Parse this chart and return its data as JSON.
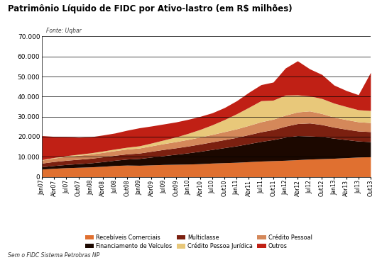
{
  "title": "Patrimônio Líquido de FIDC por Ativo-lastro (em R$ milhões)",
  "fonte": "Fonte: Uqbar",
  "footnote": "Sem o FIDC Sistema Petrobras NP",
  "ylim": [
    0,
    70000
  ],
  "yticks": [
    0,
    10000,
    20000,
    30000,
    40000,
    50000,
    60000,
    70000
  ],
  "series_names": [
    "Recebíveis Comerciais",
    "Financiamento de Veículos",
    "Multiclasse",
    "Crédito Pessoal",
    "Crédito Pessoa Jurídica",
    "Outros"
  ],
  "series_colors": [
    "#E07030",
    "#1C0800",
    "#7B2010",
    "#D4885A",
    "#E8C87A",
    "#C02015"
  ],
  "legend_order": [
    0,
    1,
    5,
    2,
    3,
    4
  ],
  "legend_names": [
    "Recebíveis Comerciais",
    "Financiamento de Veículos",
    "Multiclasse",
    "Crédito Pessoa Jurídica",
    "Crédito Pessoal",
    "Outros"
  ],
  "legend_colors": [
    "#E07030",
    "#1C0800",
    "#7B2010",
    "#E8C87A",
    "#D4885A",
    "#C02015"
  ],
  "x_labels": [
    "Jan07",
    "Abr07",
    "Jul07",
    "Out07",
    "Jan08",
    "Abr08",
    "Jul08",
    "Out08",
    "Jan09",
    "Abr09",
    "Jul09",
    "Out09",
    "Jan10",
    "Abr10",
    "Jul10",
    "Out10",
    "Jan11",
    "Abr11",
    "Jul11",
    "Out11",
    "Jan12",
    "Abr12",
    "Jul12",
    "Out12",
    "Jan13",
    "Abr13",
    "Jul13",
    "Out13"
  ],
  "data": {
    "Recebíveis Comerciais": [
      3800,
      4200,
      4500,
      4700,
      4900,
      5200,
      5600,
      5800,
      5700,
      5900,
      6100,
      6200,
      6300,
      6500,
      6800,
      7000,
      7200,
      7500,
      7800,
      8000,
      8200,
      8500,
      8800,
      9000,
      9200,
      9500,
      9800,
      10000
    ],
    "Financiamento de Veículos": [
      1200,
      1400,
      1600,
      1800,
      2000,
      2300,
      2600,
      3000,
      3400,
      3900,
      4400,
      5000,
      5600,
      6200,
      6800,
      7500,
      8200,
      9000,
      9800,
      10500,
      11500,
      12000,
      11500,
      11000,
      10000,
      9000,
      8000,
      7500
    ],
    "Multiclasse": [
      1800,
      2000,
      2100,
      2200,
      2300,
      2400,
      2500,
      2600,
      2700,
      2900,
      3100,
      3200,
      3400,
      3600,
      3800,
      4000,
      4200,
      4500,
      4800,
      5000,
      5500,
      6000,
      6500,
      6000,
      5500,
      5200,
      5000,
      5000
    ],
    "Crédito Pessoal": [
      1500,
      1700,
      1900,
      2000,
      2100,
      2200,
      2300,
      2400,
      2500,
      2700,
      2900,
      3100,
      3300,
      3500,
      3700,
      4000,
      4300,
      4600,
      5000,
      5200,
      5500,
      5800,
      6000,
      5500,
      5000,
      4800,
      4600,
      4500
    ],
    "Crédito Pessoa Jurídica": [
      200,
      300,
      400,
      500,
      600,
      700,
      800,
      900,
      1100,
      1400,
      1800,
      2300,
      3000,
      3800,
      4800,
      6000,
      7500,
      9000,
      10500,
      9500,
      10000,
      8500,
      7500,
      7500,
      7000,
      6500,
      6000,
      6000
    ],
    "Outros": [
      12000,
      10500,
      9500,
      8500,
      8000,
      8000,
      8000,
      8500,
      9000,
      8500,
      8000,
      7500,
      7000,
      6500,
      6000,
      6000,
      6500,
      7500,
      8000,
      9000,
      13500,
      17000,
      13500,
      12000,
      9000,
      8000,
      7500,
      19000
    ]
  }
}
